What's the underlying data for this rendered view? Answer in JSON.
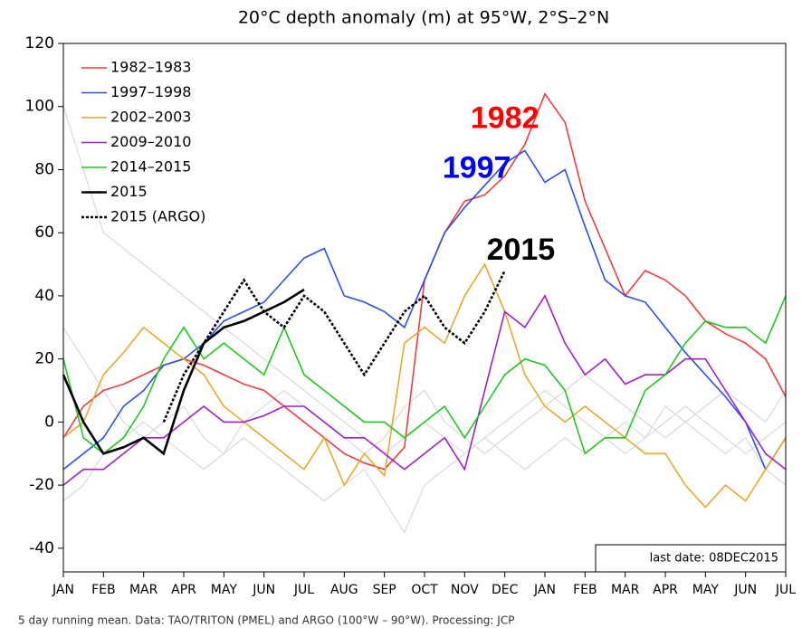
{
  "chart_data": {
    "type": "line",
    "title": "20°C depth anomaly (m) at 95°W, 2°S–2°N",
    "footer": "5 day running mean.  Data: TAO/TRITON (PMEL) and ARGO (100°W – 90°W).  Processing: JCP",
    "date_note": "last date: 08DEC2015",
    "x": [
      0,
      0.5,
      1,
      1.5,
      2,
      2.5,
      3,
      3.5,
      4,
      4.5,
      5,
      5.5,
      6,
      6.5,
      7,
      7.5,
      8,
      8.5,
      9,
      9.5,
      10,
      10.5,
      11,
      11.5,
      12,
      12.5,
      13,
      13.5,
      14,
      14.5,
      15,
      15.5,
      16,
      16.5,
      17,
      17.5,
      18
    ],
    "xlim": [
      0,
      18
    ],
    "xticks": [
      {
        "value": 0,
        "label": "JAN"
      },
      {
        "value": 1,
        "label": "FEB"
      },
      {
        "value": 2,
        "label": "MAR"
      },
      {
        "value": 3,
        "label": "APR"
      },
      {
        "value": 4,
        "label": "MAY"
      },
      {
        "value": 5,
        "label": "JUN"
      },
      {
        "value": 6,
        "label": "JUL"
      },
      {
        "value": 7,
        "label": "AUG"
      },
      {
        "value": 8,
        "label": "SEP"
      },
      {
        "value": 9,
        "label": "OCT"
      },
      {
        "value": 10,
        "label": "NOV"
      },
      {
        "value": 11,
        "label": "DEC"
      },
      {
        "value": 12,
        "label": "JAN"
      },
      {
        "value": 13,
        "label": "FEB"
      },
      {
        "value": 14,
        "label": "MAR"
      },
      {
        "value": 15,
        "label": "APR"
      },
      {
        "value": 16,
        "label": "MAY"
      },
      {
        "value": 17,
        "label": "JUN"
      },
      {
        "value": 18,
        "label": "JUL"
      }
    ],
    "ylim": [
      -47.5,
      120
    ],
    "yticks": [
      -40,
      -20,
      0,
      20,
      40,
      60,
      80,
      100,
      120
    ],
    "legend": "upper left",
    "series": [
      {
        "color": "#d9d9d9",
        "values": [
          100,
          80,
          60,
          55,
          50,
          45,
          40,
          35,
          30,
          25,
          20,
          15,
          10,
          5,
          0,
          -5,
          -10,
          -5,
          0,
          -5,
          -10,
          -5,
          0,
          5,
          10,
          5,
          0,
          -5,
          -10,
          -5,
          0,
          5,
          0,
          -5,
          -10,
          -5,
          0
        ]
      },
      {
        "color": "#d9d9d9",
        "values": [
          -25,
          -20,
          -10,
          -5,
          0,
          -5,
          -10,
          -15,
          -10,
          -5,
          -10,
          -15,
          -20,
          -25,
          -20,
          -15,
          -25,
          -35,
          -20,
          -15,
          -10,
          -5,
          -10,
          -15,
          -10,
          -5,
          -10,
          -5,
          0,
          -5,
          5,
          0,
          -5,
          -10,
          -5,
          -15,
          -20
        ]
      },
      {
        "color": "#d9d9d9",
        "values": [
          30,
          20,
          10,
          0,
          -5,
          0,
          5,
          -5,
          -10,
          0,
          5,
          10,
          5,
          0,
          -5,
          -10,
          -5,
          5,
          10,
          0,
          -5,
          -10,
          -5,
          0,
          5,
          10,
          15,
          10,
          5,
          0,
          -5,
          0,
          5,
          10,
          5,
          0,
          10
        ]
      },
      {
        "name": "1982–1983",
        "color": "#f03c3c",
        "values": [
          -5,
          5,
          10,
          12,
          15,
          18,
          20,
          18,
          15,
          12,
          10,
          5,
          0,
          -5,
          -10,
          -13,
          -15,
          -8,
          45,
          60,
          70,
          72,
          78,
          88,
          104,
          95,
          70,
          55,
          40,
          48,
          45,
          40,
          32,
          28,
          25,
          20,
          8
        ]
      },
      {
        "name": "1997–1998",
        "color": "#2850e6",
        "values": [
          -15,
          -10,
          -5,
          5,
          10,
          18,
          20,
          25,
          32,
          35,
          38,
          45,
          52,
          55,
          40,
          38,
          35,
          30,
          45,
          60,
          68,
          75,
          82,
          86,
          76,
          80,
          62,
          45,
          40,
          38,
          30,
          22,
          15,
          8,
          0,
          -15,
          -5
        ]
      },
      {
        "name": "2002–2003",
        "color": "#e6a82e",
        "values": [
          -5,
          0,
          15,
          22,
          30,
          25,
          20,
          15,
          5,
          0,
          -5,
          -10,
          -15,
          -5,
          -20,
          -10,
          -17,
          25,
          30,
          25,
          40,
          50,
          35,
          15,
          5,
          0,
          5,
          0,
          -5,
          -10,
          -10,
          -20,
          -27,
          -20,
          -25,
          -15,
          -5
        ]
      },
      {
        "name": "2009–2010",
        "color": "#a020c8",
        "values": [
          -20,
          -15,
          -15,
          -10,
          -5,
          -5,
          0,
          5,
          0,
          0,
          2,
          5,
          5,
          0,
          -5,
          -5,
          -10,
          -15,
          -10,
          -5,
          -15,
          10,
          35,
          30,
          40,
          25,
          15,
          20,
          12,
          15,
          15,
          20,
          20,
          10,
          0,
          -10,
          -15
        ]
      },
      {
        "name": "2014–2015",
        "color": "#1ec81e",
        "values": [
          20,
          -5,
          -10,
          -5,
          5,
          20,
          30,
          20,
          25,
          20,
          15,
          30,
          15,
          10,
          5,
          0,
          0,
          -5,
          0,
          5,
          -5,
          5,
          15,
          20,
          18,
          10,
          -10,
          -5,
          -5,
          10,
          15,
          25,
          32,
          30,
          30,
          25,
          40
        ]
      },
      {
        "name": "2015",
        "color": "#000000",
        "values": [
          15,
          0,
          -10,
          -8,
          -5,
          -10,
          10,
          25,
          30,
          32,
          35,
          38,
          42,
          null,
          null,
          null,
          null,
          null,
          null,
          null,
          null,
          null,
          null,
          null,
          null,
          null,
          null,
          null,
          null,
          null,
          null,
          null,
          null,
          null,
          null,
          null,
          null
        ]
      },
      {
        "name": "2015 (ARGO)",
        "color": "#000000",
        "dashed": true,
        "values": [
          null,
          null,
          null,
          null,
          null,
          0,
          15,
          25,
          35,
          45,
          35,
          30,
          40,
          35,
          25,
          15,
          25,
          35,
          40,
          30,
          25,
          35,
          48,
          null,
          null,
          null,
          null,
          null,
          null,
          null,
          null,
          null,
          null,
          null,
          null,
          null,
          null
        ]
      }
    ],
    "annotations": [
      {
        "text": "1982",
        "x": 11.0,
        "y": 95.7,
        "color": "#ff0000"
      },
      {
        "text": "1997",
        "x": 10.3,
        "y": 80,
        "color": "#0000ff"
      },
      {
        "text": "2015",
        "x": 11.4,
        "y": 54,
        "color": "#000000"
      }
    ]
  }
}
